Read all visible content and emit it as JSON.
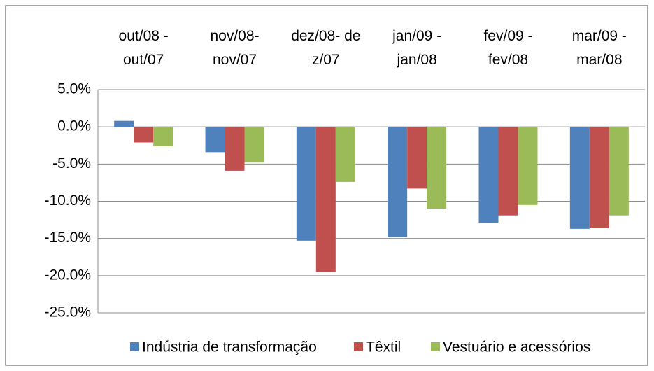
{
  "chart_data": {
    "type": "bar",
    "categories": [
      "out/08 -\nout/07",
      "nov/08-\nnov/07",
      "dez/08- de\nz/07",
      "jan/09 -\njan/08",
      "fev/09 -\nfev/08",
      "mar/09 -\nmar/08"
    ],
    "series": [
      {
        "name": "Indústria de transformação",
        "color": "#4f81bd",
        "values": [
          0.8,
          -3.4,
          -15.3,
          -14.8,
          -12.9,
          -13.7
        ]
      },
      {
        "name": "Têxtil",
        "color": "#c0504d",
        "values": [
          -2.1,
          -5.9,
          -19.5,
          -8.3,
          -11.9,
          -13.6
        ]
      },
      {
        "name": "Vestuário e acessórios",
        "color": "#9bbb59",
        "values": [
          -2.6,
          -4.8,
          -7.4,
          -11.0,
          -10.5,
          -11.9
        ]
      }
    ],
    "ylim": [
      -25,
      5
    ],
    "yticks": [
      {
        "value": 5,
        "label": "5.0%"
      },
      {
        "value": 0,
        "label": "0.0%"
      },
      {
        "value": -5,
        "label": "-5.0%"
      },
      {
        "value": -10,
        "label": "-10.0%"
      },
      {
        "value": -15,
        "label": "-15.0%"
      },
      {
        "value": -20,
        "label": "-20.0%"
      },
      {
        "value": -25,
        "label": "-25.0%"
      }
    ],
    "grid": true,
    "legend": "bottom"
  }
}
